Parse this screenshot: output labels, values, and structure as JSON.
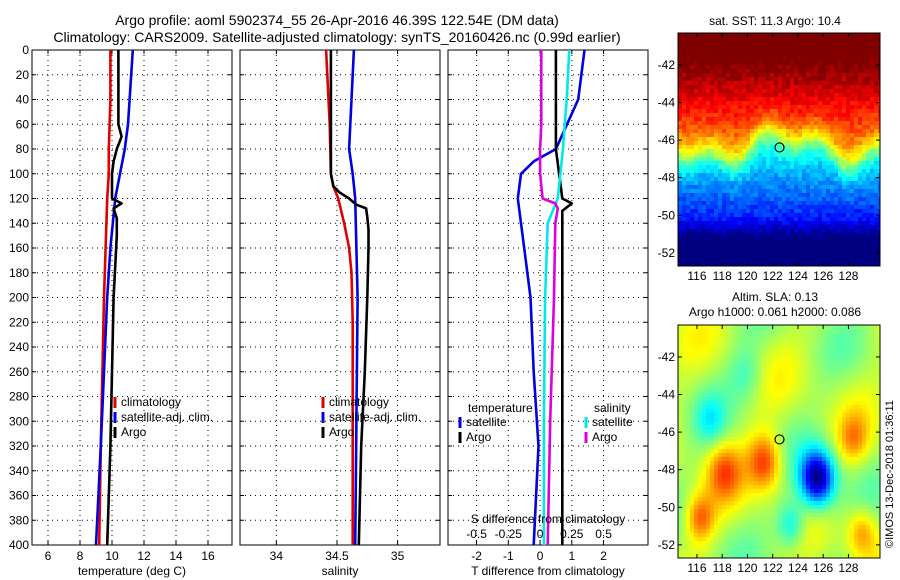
{
  "header": {
    "line1": "Argo profile: aoml 5902374_55 26-Apr-2016 46.39S 122.54E (DM data)",
    "line2": "Climatology: CARS2009. Satellite-adjusted climatology: synTS_20160426.nc (0.99d earlier)"
  },
  "credit": "©IMOS 13-Dec-2018 01:36:11",
  "colors": {
    "red": "#e00000",
    "blue": "#0000e0",
    "black": "#000000",
    "cyan": "#00e8e8",
    "magenta": "#dd00dd"
  },
  "chart_data": [
    {
      "type": "line",
      "id": "temperature",
      "xlabel": "temperature (deg C)",
      "xlim": [
        5,
        17.5
      ],
      "xticks": [
        6,
        8,
        10,
        12,
        14,
        16
      ],
      "ylim": [
        0,
        400
      ],
      "yticks": [
        0,
        20,
        40,
        60,
        80,
        100,
        120,
        140,
        160,
        180,
        200,
        220,
        240,
        260,
        280,
        300,
        320,
        340,
        360,
        380,
        400
      ],
      "legend": [
        "climatology",
        "satellite-adj. clim.",
        "Argo"
      ],
      "series": [
        {
          "name": "climatology",
          "color": "red",
          "depth": [
            0,
            40,
            80,
            100,
            120,
            160,
            200,
            260,
            320,
            400
          ],
          "values": [
            9.9,
            9.9,
            9.8,
            9.8,
            9.7,
            9.6,
            9.5,
            9.4,
            9.3,
            9.2
          ]
        },
        {
          "name": "satellite-adj. clim.",
          "color": "blue",
          "depth": [
            0,
            20,
            40,
            60,
            80,
            100,
            120,
            160,
            200,
            260,
            320,
            400
          ],
          "values": [
            11.3,
            11.2,
            11.1,
            11.0,
            10.8,
            10.5,
            10.2,
            9.9,
            9.7,
            9.5,
            9.3,
            9.0
          ]
        },
        {
          "name": "Argo",
          "color": "black",
          "depth": [
            0,
            40,
            60,
            70,
            80,
            90,
            100,
            110,
            120,
            124,
            128,
            136,
            150,
            200,
            260,
            320,
            400
          ],
          "values": [
            10.4,
            10.4,
            10.4,
            10.6,
            10.3,
            10.1,
            10.0,
            10.0,
            10.0,
            10.6,
            10.1,
            10.3,
            10.3,
            10.1,
            10.0,
            9.9,
            9.7
          ]
        }
      ]
    },
    {
      "type": "line",
      "id": "salinity",
      "xlabel": "salinity",
      "xlim": [
        33.7,
        35.35
      ],
      "xticks": [
        34,
        34.5,
        35
      ],
      "xticklabels": [
        "34",
        "34.5",
        "35"
      ],
      "ylim": [
        0,
        400
      ],
      "legend": [
        "climatology",
        "satellite-adj. clim.",
        "Argo"
      ],
      "series": [
        {
          "name": "climatology",
          "color": "red",
          "depth": [
            0,
            20,
            60,
            100,
            110,
            120,
            140,
            160,
            180,
            220,
            300,
            400
          ],
          "values": [
            34.41,
            34.42,
            34.44,
            34.45,
            34.47,
            34.51,
            34.56,
            34.6,
            34.62,
            34.63,
            34.63,
            34.63
          ]
        },
        {
          "name": "satellite-adj. clim.",
          "color": "blue",
          "depth": [
            0,
            40,
            80,
            100,
            120,
            200,
            300,
            400
          ],
          "values": [
            34.64,
            34.62,
            34.6,
            34.63,
            34.65,
            34.67,
            34.66,
            34.65
          ]
        },
        {
          "name": "Argo",
          "color": "black",
          "depth": [
            0,
            100,
            110,
            115,
            120,
            125,
            128,
            135,
            145,
            160,
            200,
            260,
            320,
            400
          ],
          "values": [
            34.45,
            34.45,
            34.47,
            34.52,
            34.6,
            34.66,
            34.74,
            34.75,
            34.76,
            34.76,
            34.75,
            34.73,
            34.7,
            34.68
          ]
        }
      ]
    },
    {
      "type": "line",
      "id": "differences",
      "xlabel": "T difference from climatology",
      "xlim": [
        -2.9,
        3.4
      ],
      "xticks": [
        -2,
        -1,
        0,
        1,
        2
      ],
      "top_axis_label": "S difference from climatology",
      "top_ticks": [
        -0.5,
        -0.25,
        0,
        0.25,
        0.5
      ],
      "top_ticklabels": [
        "-0.5",
        "-0.25",
        "0",
        "0.25",
        "0.5"
      ],
      "s_scale_per_T": 0.25,
      "ylim": [
        0,
        400
      ],
      "legend_temperature": {
        "title": "temperature",
        "items": [
          "satellite",
          "Argo"
        ]
      },
      "legend_salinity": {
        "title": "salinity",
        "items": [
          "satellite",
          "Argo"
        ]
      },
      "series": [
        {
          "name": "T satellite",
          "color": "blue",
          "depth": [
            0,
            40,
            80,
            90,
            100,
            120,
            160,
            200,
            260,
            320,
            400
          ],
          "values": [
            1.4,
            1.2,
            0.5,
            -0.2,
            -0.6,
            -0.7,
            -0.5,
            -0.3,
            -0.2,
            -0.05,
            -0.2
          ]
        },
        {
          "name": "T Argo",
          "color": "black",
          "depth": [
            0,
            40,
            60,
            80,
            100,
            120,
            124,
            130,
            200,
            300,
            400
          ],
          "values": [
            0.5,
            0.5,
            0.5,
            0.5,
            0.6,
            0.7,
            1.0,
            0.7,
            0.7,
            0.7,
            0.7
          ]
        },
        {
          "name": "S satellite",
          "color": "cyan",
          "depth": [
            0,
            40,
            80,
            100,
            120,
            140,
            200,
            300,
            400
          ],
          "values": [
            0.23,
            0.21,
            0.18,
            0.16,
            0.14,
            0.06,
            0.04,
            0.03,
            0.03
          ]
        },
        {
          "name": "S Argo",
          "color": "magenta",
          "depth": [
            0,
            60,
            80,
            100,
            120,
            124,
            128,
            140,
            200,
            300,
            400
          ],
          "values": [
            0.01,
            0.01,
            0.0,
            0.0,
            0.02,
            0.12,
            0.14,
            0.12,
            0.11,
            0.08,
            0.06
          ]
        }
      ]
    }
  ],
  "maps": [
    {
      "id": "sst",
      "title": "sat. SST: 11.3 Argo: 10.4",
      "lon_ticks": [
        116,
        118,
        120,
        122,
        124,
        126,
        128
      ],
      "lat_ticks": [
        -42,
        -44,
        -46,
        -48,
        -50,
        -52
      ],
      "lon_range": [
        114.5,
        130.5
      ],
      "lat_range": [
        -52.7,
        -40.3
      ],
      "argo_position": {
        "lon": 122.54,
        "lat": -46.39
      }
    },
    {
      "id": "sla",
      "title": "Altim. SLA: 0.13",
      "subtitle": "Argo h1000: 0.061 h2000: 0.086",
      "lon_ticks": [
        116,
        118,
        120,
        122,
        124,
        126,
        128
      ],
      "lat_ticks": [
        -42,
        -44,
        -46,
        -48,
        -50,
        -52
      ],
      "lon_range": [
        114.5,
        130.5
      ],
      "lat_range": [
        -52.7,
        -40.3
      ],
      "argo_position": {
        "lon": 122.54,
        "lat": -46.39
      }
    }
  ]
}
